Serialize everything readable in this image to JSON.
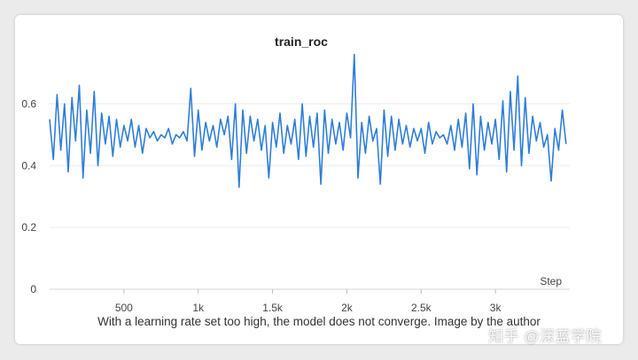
{
  "chart_data": {
    "type": "line",
    "title": "train_roc",
    "xlabel": "Step",
    "ylabel": "",
    "xlim": [
      0,
      3500
    ],
    "ylim": [
      0,
      0.75
    ],
    "x_ticks": [
      500,
      1000,
      1500,
      2000,
      2500,
      3000
    ],
    "x_tick_labels": [
      "500",
      "1k",
      "1.5k",
      "2k",
      "2.5k",
      "3k"
    ],
    "y_ticks": [
      0,
      0.2,
      0.4,
      0.6
    ],
    "y_tick_labels": [
      "0",
      "0.2",
      "0.4",
      "0.6"
    ],
    "grid": true,
    "series": [
      {
        "color": "#2f7ed8",
        "x": [
          0,
          25,
          50,
          75,
          100,
          125,
          150,
          175,
          200,
          225,
          250,
          275,
          300,
          325,
          350,
          375,
          400,
          425,
          450,
          475,
          500,
          525,
          550,
          575,
          600,
          625,
          650,
          675,
          700,
          725,
          750,
          775,
          800,
          825,
          850,
          875,
          900,
          925,
          950,
          975,
          1000,
          1025,
          1050,
          1075,
          1100,
          1125,
          1150,
          1175,
          1200,
          1225,
          1250,
          1275,
          1300,
          1325,
          1350,
          1375,
          1400,
          1425,
          1450,
          1475,
          1500,
          1525,
          1550,
          1575,
          1600,
          1625,
          1650,
          1675,
          1700,
          1725,
          1750,
          1775,
          1800,
          1825,
          1850,
          1875,
          1900,
          1925,
          1950,
          1975,
          2000,
          2025,
          2050,
          2075,
          2100,
          2125,
          2150,
          2175,
          2200,
          2225,
          2250,
          2275,
          2300,
          2325,
          2350,
          2375,
          2400,
          2425,
          2450,
          2475,
          2500,
          2525,
          2550,
          2575,
          2600,
          2625,
          2650,
          2675,
          2700,
          2725,
          2750,
          2775,
          2800,
          2825,
          2850,
          2875,
          2900,
          2925,
          2950,
          2975,
          3000,
          3025,
          3050,
          3075,
          3100,
          3125,
          3150,
          3175,
          3200,
          3225,
          3250,
          3275,
          3300,
          3325,
          3350,
          3375,
          3400,
          3425,
          3450,
          3475
        ],
        "y": [
          0.55,
          0.42,
          0.63,
          0.45,
          0.6,
          0.38,
          0.62,
          0.48,
          0.66,
          0.36,
          0.58,
          0.44,
          0.64,
          0.4,
          0.57,
          0.47,
          0.56,
          0.43,
          0.55,
          0.46,
          0.53,
          0.48,
          0.55,
          0.46,
          0.53,
          0.44,
          0.52,
          0.49,
          0.51,
          0.48,
          0.5,
          0.49,
          0.52,
          0.47,
          0.5,
          0.49,
          0.51,
          0.48,
          0.65,
          0.43,
          0.58,
          0.45,
          0.54,
          0.48,
          0.53,
          0.46,
          0.55,
          0.5,
          0.56,
          0.42,
          0.6,
          0.33,
          0.58,
          0.44,
          0.56,
          0.48,
          0.55,
          0.45,
          0.53,
          0.36,
          0.54,
          0.46,
          0.57,
          0.44,
          0.53,
          0.47,
          0.55,
          0.42,
          0.6,
          0.43,
          0.56,
          0.46,
          0.57,
          0.34,
          0.58,
          0.44,
          0.55,
          0.47,
          0.54,
          0.45,
          0.57,
          0.49,
          0.76,
          0.36,
          0.54,
          0.44,
          0.56,
          0.48,
          0.52,
          0.34,
          0.58,
          0.43,
          0.56,
          0.45,
          0.55,
          0.47,
          0.53,
          0.46,
          0.52,
          0.48,
          0.52,
          0.44,
          0.54,
          0.47,
          0.51,
          0.49,
          0.5,
          0.47,
          0.53,
          0.45,
          0.55,
          0.46,
          0.57,
          0.39,
          0.6,
          0.37,
          0.56,
          0.45,
          0.54,
          0.47,
          0.55,
          0.42,
          0.61,
          0.38,
          0.64,
          0.45,
          0.69,
          0.4,
          0.62,
          0.44,
          0.56,
          0.48,
          0.54,
          0.46,
          0.5,
          0.35,
          0.52,
          0.45,
          0.58,
          0.47
        ]
      }
    ]
  },
  "caption": "With a learning rate set too high, the model does not converge. Image by the author",
  "watermark": "知乎 @深蓝学院"
}
